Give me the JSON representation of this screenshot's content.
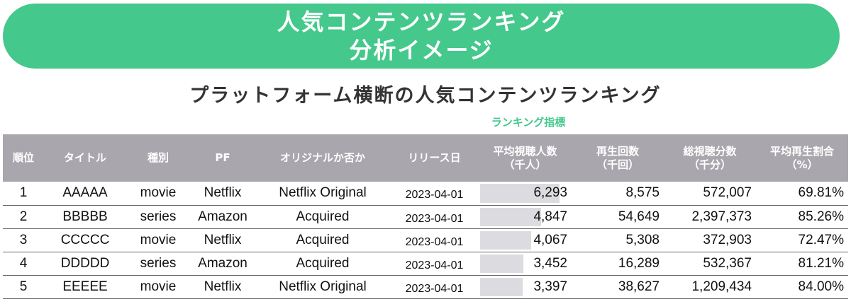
{
  "header": {
    "title_line1": "人気コンテンツランキング",
    "title_line2": "分析イメージ",
    "color": "#44c88c"
  },
  "subtitle": "プラットフォーム横断の人気コンテンツランキング",
  "ranking_indicator_label": "ランキング指標",
  "table": {
    "headers": {
      "rank": "順位",
      "title": "タイトル",
      "type": "種別",
      "pf": "PF",
      "original": "オリジナルか否か",
      "release": "リリース日",
      "avg_viewers_l1": "平均視聴人数",
      "avg_viewers_l2": "（千人）",
      "plays_l1": "再生回数",
      "plays_l2": "（千回）",
      "total_minutes_l1": "総視聴分数",
      "total_minutes_l2": "（千分）",
      "completion_l1": "平均再生割合",
      "completion_l2": "（%）"
    },
    "rows": [
      {
        "rank": "1",
        "title": "AAAAA",
        "type": "movie",
        "pf": "Netflix",
        "original": "Netflix Original",
        "release": "2023-04-01",
        "avg_viewers": "6,293",
        "avg_viewers_fraction": 1.0,
        "plays": "8,575",
        "total_minutes": "572,007",
        "completion": "69.81%"
      },
      {
        "rank": "2",
        "title": "BBBBB",
        "type": "series",
        "pf": "Amazon",
        "original": "Acquired",
        "release": "2023-04-01",
        "avg_viewers": "4,847",
        "avg_viewers_fraction": 0.77,
        "plays": "54,649",
        "total_minutes": "2,397,373",
        "completion": "85.26%"
      },
      {
        "rank": "3",
        "title": "CCCCC",
        "type": "movie",
        "pf": "Netflix",
        "original": "Acquired",
        "release": "2023-04-01",
        "avg_viewers": "4,067",
        "avg_viewers_fraction": 0.646,
        "plays": "5,308",
        "total_minutes": "372,903",
        "completion": "72.47%"
      },
      {
        "rank": "4",
        "title": "DDDDD",
        "type": "series",
        "pf": "Amazon",
        "original": "Acquired",
        "release": "2023-04-01",
        "avg_viewers": "3,452",
        "avg_viewers_fraction": 0.549,
        "plays": "16,289",
        "total_minutes": "532,367",
        "completion": "81.21%"
      },
      {
        "rank": "5",
        "title": "EEEEE",
        "type": "movie",
        "pf": "Netflix",
        "original": "Netflix Original",
        "release": "2023-04-01",
        "avg_viewers": "3,397",
        "avg_viewers_fraction": 0.54,
        "plays": "38,627",
        "total_minutes": "1,209,434",
        "completion": "84.00%"
      }
    ]
  }
}
